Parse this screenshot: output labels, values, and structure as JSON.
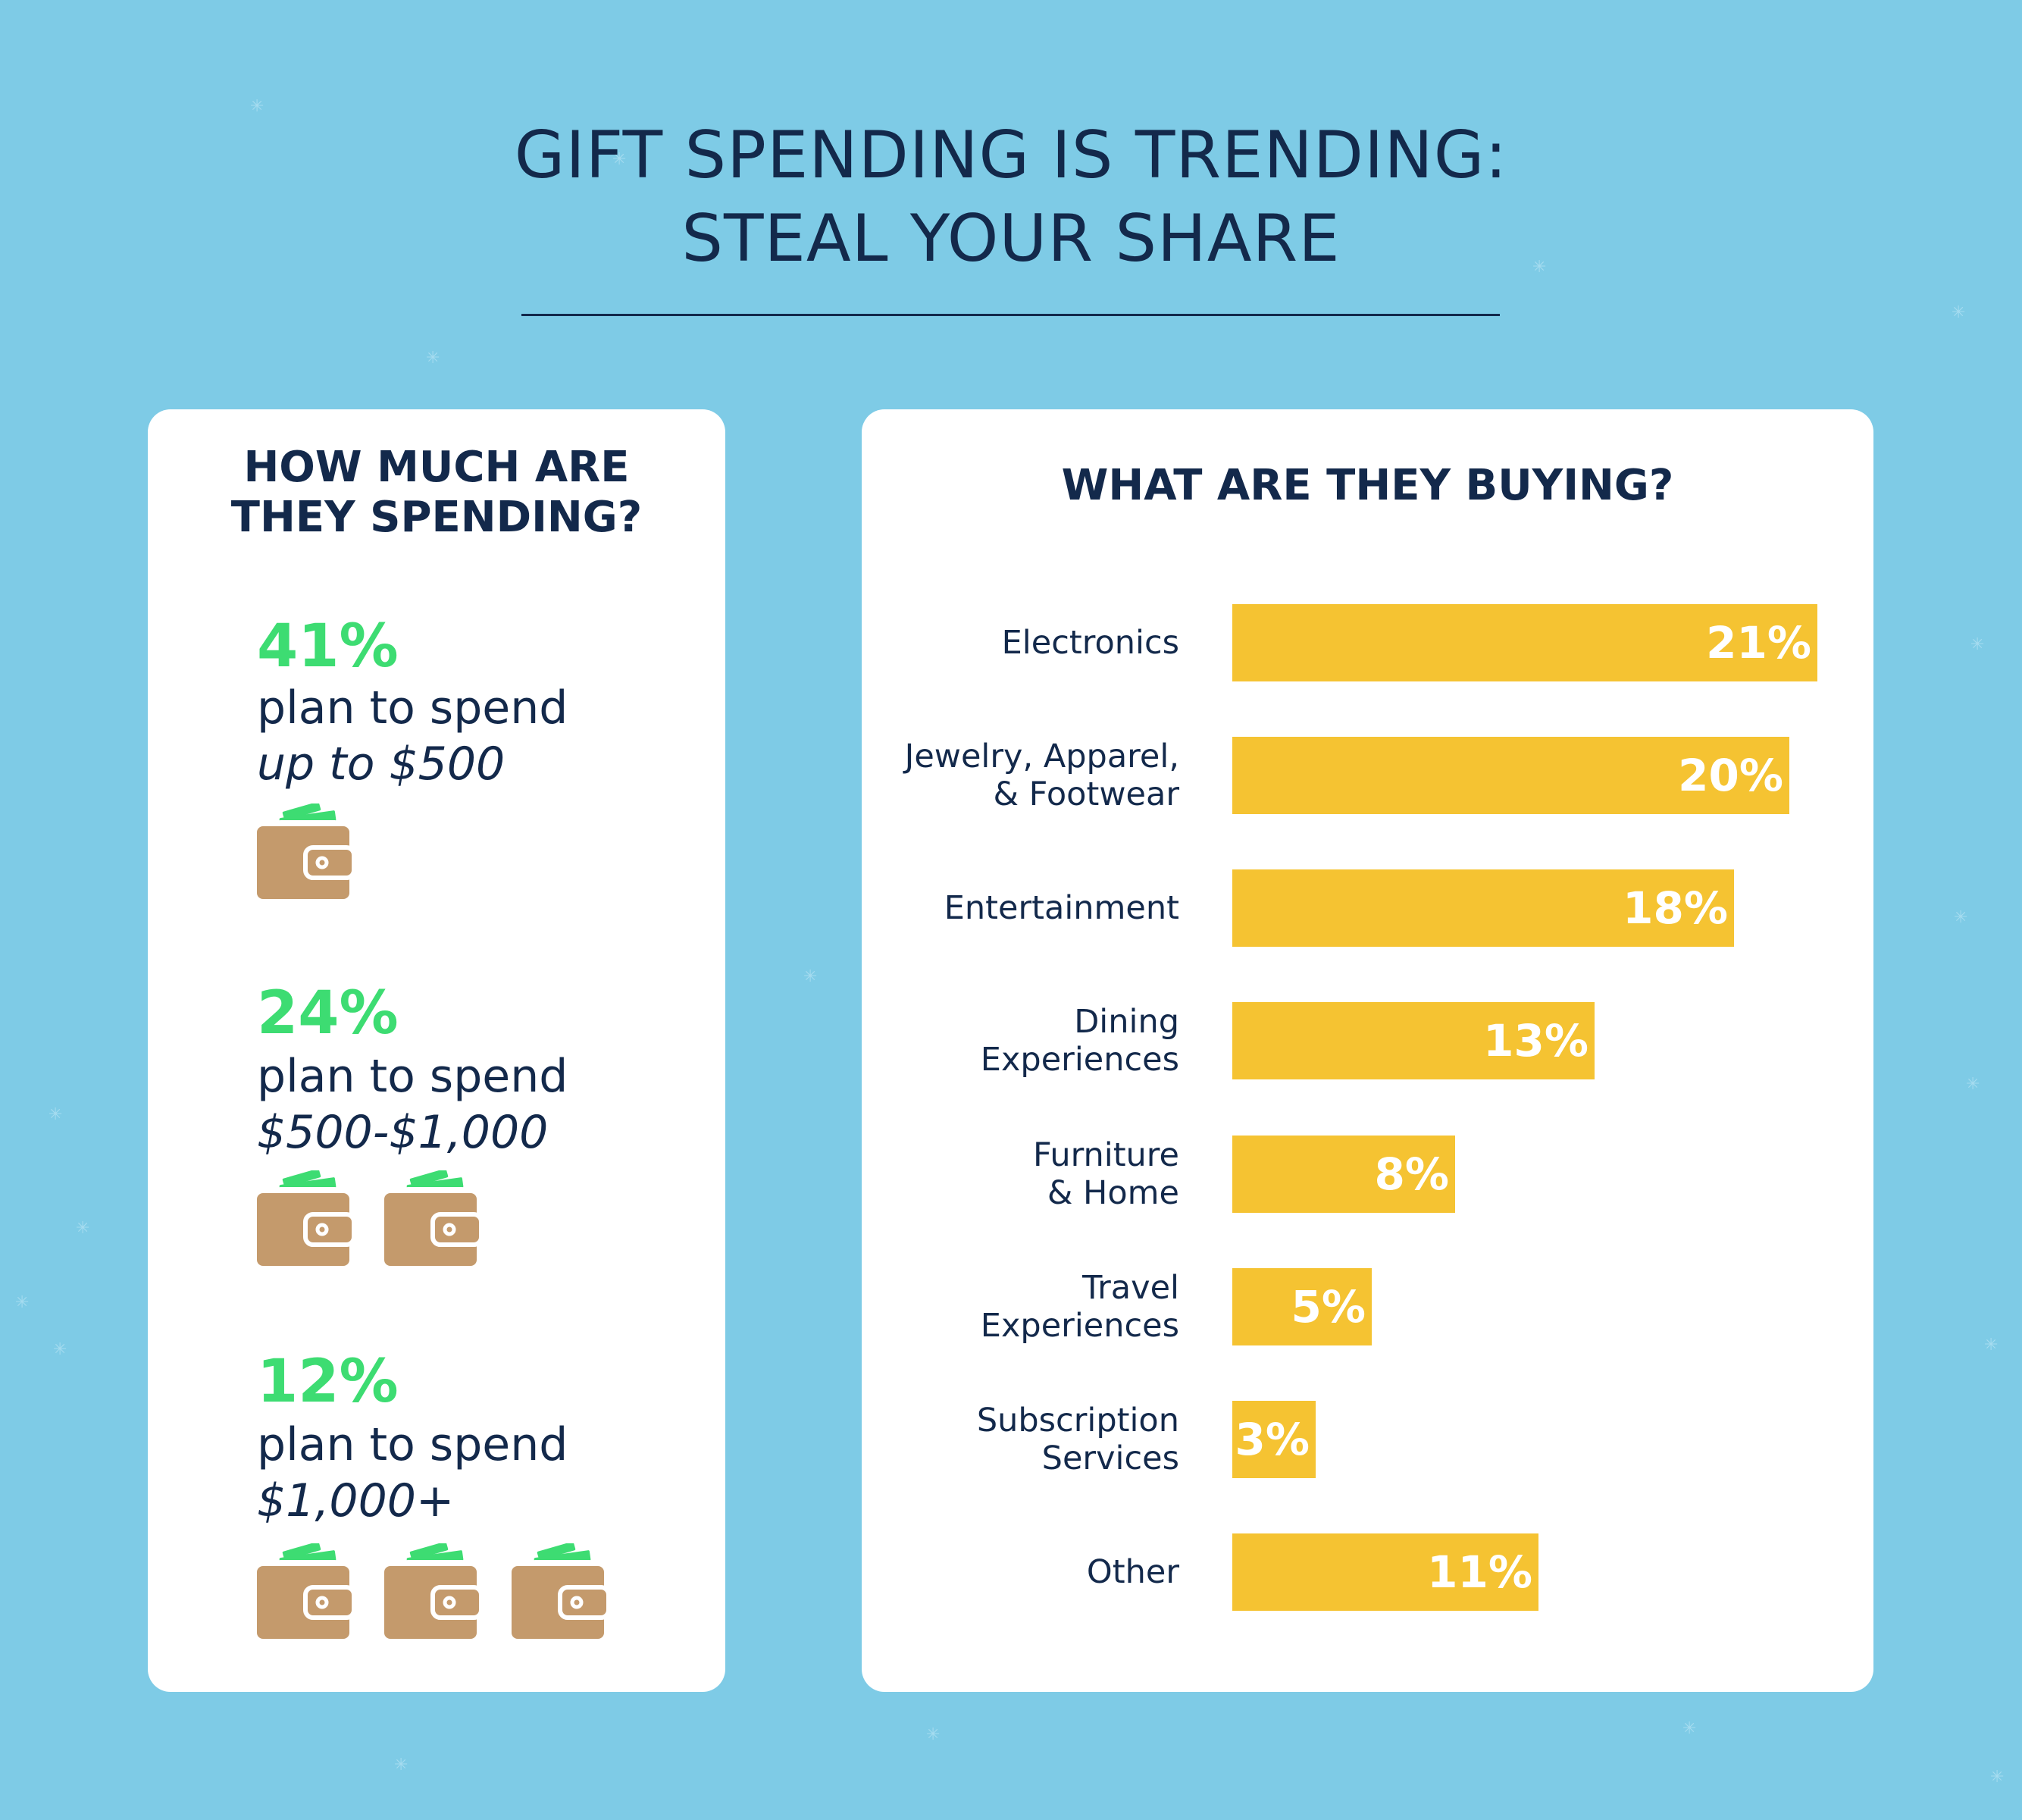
{
  "title": {
    "line1": "GIFT SPENDING IS TRENDING:",
    "line2": "STEAL YOUR SHARE"
  },
  "spending": {
    "heading_line1": "HOW MUCH ARE",
    "heading_line2": "THEY SPENDING?",
    "stats": [
      {
        "percent": "41%",
        "text": "plan to spend",
        "range": "up to $500",
        "wallet_count": 1
      },
      {
        "percent": "24%",
        "text": "plan to spend",
        "range": "$500-$1,000",
        "wallet_count": 2
      },
      {
        "percent": "12%",
        "text": "plan to spend",
        "range": "$1,000+",
        "wallet_count": 3
      }
    ],
    "wallet_icon": "wallet-icon",
    "colors": {
      "percent": "#3ddc72",
      "wallet": "#c49a6c",
      "cash": "#3ddc72"
    }
  },
  "chart_data": {
    "type": "bar",
    "orientation": "horizontal",
    "title": "WHAT ARE THEY BUYING?",
    "categories": [
      [
        "Electronics"
      ],
      [
        "Jewelry, Apparel,",
        "& Footwear"
      ],
      [
        "Entertainment"
      ],
      [
        "Dining",
        "Experiences"
      ],
      [
        "Furniture",
        "& Home"
      ],
      [
        "Travel",
        "Experiences"
      ],
      [
        "Subscription",
        "Services"
      ],
      [
        "Other"
      ]
    ],
    "values": [
      21,
      20,
      18,
      13,
      8,
      5,
      3,
      11
    ],
    "value_labels": [
      "21%",
      "20%",
      "18%",
      "13%",
      "8%",
      "5%",
      "3%",
      "11%"
    ],
    "unit": "%",
    "xlim": [
      0,
      21
    ],
    "grid": false,
    "bar_color": "#f5c332",
    "label_color": "#ffffff"
  },
  "colors": {
    "background": "#7ecbe6",
    "navy": "#13294b",
    "card": "#ffffff"
  }
}
